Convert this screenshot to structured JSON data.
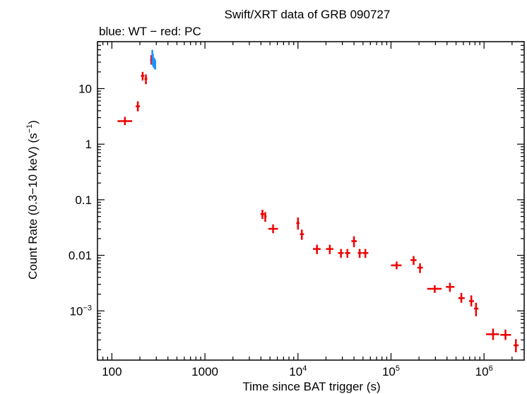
{
  "chart_data": {
    "type": "scatter",
    "title": "Swift/XRT data of GRB 090727",
    "subtitle": "blue: WT − red: PC",
    "xlabel": "Time since BAT trigger (s)",
    "ylabel_parts": {
      "main": "Count Rate (0.3−10 keV) (s",
      "sup": "−1",
      "end": ")"
    },
    "x_scale": "log",
    "y_scale": "log",
    "xlim": [
      70,
      2700000
    ],
    "ylim": [
      0.00013,
      70
    ],
    "x_ticks": [
      {
        "value": 100,
        "text": "100"
      },
      {
        "value": 1000,
        "text": "1000"
      },
      {
        "value": 10000,
        "base": "10",
        "exp": "4"
      },
      {
        "value": 100000,
        "base": "10",
        "exp": "5"
      },
      {
        "value": 1000000,
        "base": "10",
        "exp": "6"
      }
    ],
    "y_ticks": [
      {
        "value": 10,
        "text": "10"
      },
      {
        "value": 1,
        "text": "1"
      },
      {
        "value": 0.1,
        "text": "0.1"
      },
      {
        "value": 0.01,
        "text": "0.01"
      },
      {
        "value": 0.001,
        "base": "10",
        "exp": "−3"
      }
    ],
    "colors": {
      "WT": "#1e8fff",
      "PC": "#ee0000",
      "axis": "#000000"
    },
    "series": [
      {
        "mode": "PC",
        "color": "#ee0000",
        "points": [
          {
            "x": 138,
            "xlo": 115,
            "xhi": 165,
            "y": 2.6,
            "ylo": 2.2,
            "yhi": 3.1
          },
          {
            "x": 190,
            "xlo": 180,
            "xhi": 200,
            "y": 4.8,
            "ylo": 3.9,
            "yhi": 5.9
          },
          {
            "x": 214,
            "xlo": 205,
            "xhi": 223,
            "y": 17,
            "ylo": 14,
            "yhi": 20
          },
          {
            "x": 232,
            "xlo": 224,
            "xhi": 240,
            "y": 15,
            "ylo": 12,
            "yhi": 18
          },
          {
            "x": 265,
            "xlo": 258,
            "xhi": 272,
            "y": 33,
            "ylo": 27,
            "yhi": 40
          },
          {
            "x": 4150,
            "xlo": 3950,
            "xhi": 4350,
            "y": 0.055,
            "ylo": 0.045,
            "yhi": 0.066
          },
          {
            "x": 4450,
            "xlo": 4350,
            "xhi": 4600,
            "y": 0.05,
            "ylo": 0.04,
            "yhi": 0.06
          },
          {
            "x": 5400,
            "xlo": 4800,
            "xhi": 6100,
            "y": 0.03,
            "ylo": 0.025,
            "yhi": 0.036
          },
          {
            "x": 10000,
            "xlo": 9600,
            "xhi": 10400,
            "y": 0.038,
            "ylo": 0.029,
            "yhi": 0.048
          },
          {
            "x": 11000,
            "xlo": 10500,
            "xhi": 11600,
            "y": 0.024,
            "ylo": 0.019,
            "yhi": 0.029
          },
          {
            "x": 16000,
            "xlo": 14500,
            "xhi": 17500,
            "y": 0.013,
            "ylo": 0.0105,
            "yhi": 0.0155
          },
          {
            "x": 22000,
            "xlo": 20000,
            "xhi": 24000,
            "y": 0.013,
            "ylo": 0.0105,
            "yhi": 0.0155
          },
          {
            "x": 29000,
            "xlo": 27000,
            "xhi": 31000,
            "y": 0.011,
            "ylo": 0.009,
            "yhi": 0.013
          },
          {
            "x": 34000,
            "xlo": 32000,
            "xhi": 36500,
            "y": 0.011,
            "ylo": 0.009,
            "yhi": 0.013
          },
          {
            "x": 40000,
            "xlo": 37500,
            "xhi": 43000,
            "y": 0.018,
            "ylo": 0.014,
            "yhi": 0.022
          },
          {
            "x": 46000,
            "xlo": 44000,
            "xhi": 48500,
            "y": 0.011,
            "ylo": 0.009,
            "yhi": 0.013
          },
          {
            "x": 53000,
            "xlo": 49000,
            "xhi": 57000,
            "y": 0.011,
            "ylo": 0.009,
            "yhi": 0.013
          },
          {
            "x": 115000,
            "xlo": 100000,
            "xhi": 130000,
            "y": 0.0066,
            "ylo": 0.0056,
            "yhi": 0.0077
          },
          {
            "x": 175000,
            "xlo": 162000,
            "xhi": 188000,
            "y": 0.0082,
            "ylo": 0.0067,
            "yhi": 0.0097
          },
          {
            "x": 205000,
            "xlo": 192000,
            "xhi": 220000,
            "y": 0.006,
            "ylo": 0.0048,
            "yhi": 0.0072
          },
          {
            "x": 295000,
            "xlo": 245000,
            "xhi": 350000,
            "y": 0.0025,
            "ylo": 0.0021,
            "yhi": 0.0029
          },
          {
            "x": 430000,
            "xlo": 390000,
            "xhi": 480000,
            "y": 0.0027,
            "ylo": 0.0022,
            "yhi": 0.0032
          },
          {
            "x": 570000,
            "xlo": 530000,
            "xhi": 620000,
            "y": 0.0017,
            "ylo": 0.0014,
            "yhi": 0.0021
          },
          {
            "x": 730000,
            "xlo": 690000,
            "xhi": 780000,
            "y": 0.0015,
            "ylo": 0.0012,
            "yhi": 0.0019
          },
          {
            "x": 820000,
            "xlo": 780000,
            "xhi": 870000,
            "y": 0.0011,
            "ylo": 0.0008,
            "yhi": 0.0014
          },
          {
            "x": 1250000,
            "xlo": 1050000,
            "xhi": 1450000,
            "y": 0.00038,
            "ylo": 0.0003,
            "yhi": 0.00048
          },
          {
            "x": 1700000,
            "xlo": 1500000,
            "xhi": 1950000,
            "y": 0.00037,
            "ylo": 0.0003,
            "yhi": 0.00046
          },
          {
            "x": 2200000,
            "xlo": 2080000,
            "xhi": 2350000,
            "y": 0.00024,
            "ylo": 0.00018,
            "yhi": 0.00031
          }
        ]
      },
      {
        "mode": "WT",
        "color": "#1e8fff",
        "points": [
          {
            "x": 272,
            "xlo": 270,
            "xhi": 274,
            "y": 34,
            "ylo": 27,
            "yhi": 50
          },
          {
            "x": 276,
            "xlo": 274,
            "xhi": 278,
            "y": 32,
            "ylo": 26,
            "yhi": 42
          },
          {
            "x": 280,
            "xlo": 278,
            "xhi": 282,
            "y": 29,
            "ylo": 24,
            "yhi": 36
          },
          {
            "x": 284,
            "xlo": 282,
            "xhi": 286,
            "y": 30,
            "ylo": 25,
            "yhi": 36
          },
          {
            "x": 288,
            "xlo": 286,
            "xhi": 290,
            "y": 28,
            "ylo": 23,
            "yhi": 34
          },
          {
            "x": 292,
            "xlo": 290,
            "xhi": 294,
            "y": 27,
            "ylo": 22,
            "yhi": 33
          }
        ]
      }
    ]
  }
}
